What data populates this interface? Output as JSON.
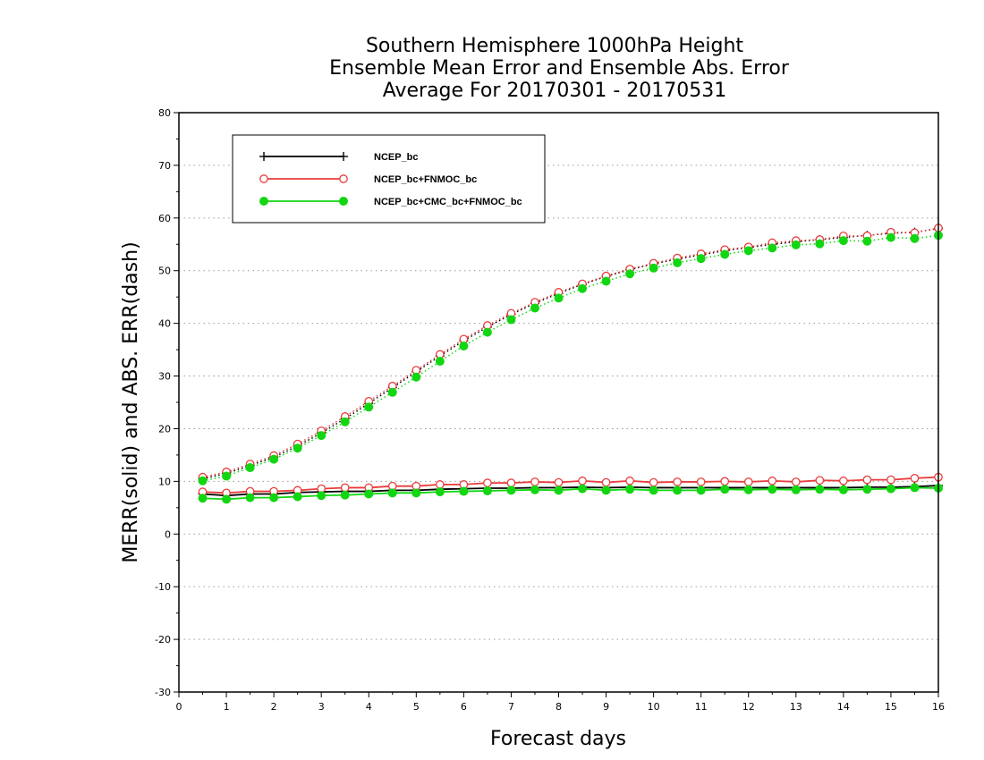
{
  "chart_data": {
    "type": "line",
    "title": [
      "Southern Hemisphere 1000hPa Height",
      "Ensemble Mean Error and Ensemble Abs. Error",
      "Average For 20170301 - 20170531"
    ],
    "xlabel": "Forecast days",
    "ylabel": "MERR(solid) and ABS. ERR(dash)",
    "xlim": [
      0,
      16
    ],
    "ylim": [
      -30,
      80
    ],
    "xticks": [
      "0",
      "1",
      "2",
      "3",
      "4",
      "5",
      "6",
      "7",
      "8",
      "9",
      "10",
      "11",
      "12",
      "13",
      "14",
      "15",
      "16"
    ],
    "yticks": [
      "-30",
      "-20",
      "-10",
      "0",
      "10",
      "20",
      "30",
      "40",
      "50",
      "60",
      "70",
      "80"
    ],
    "grid": "horizontal dotted",
    "legend_position": "top-left",
    "x": [
      0.5,
      1,
      1.5,
      2,
      2.5,
      3,
      3.5,
      4,
      4.5,
      5,
      5.5,
      6,
      6.5,
      7,
      7.5,
      8,
      8.5,
      9,
      9.5,
      10,
      10.5,
      11,
      11.5,
      12,
      12.5,
      13,
      13.5,
      14,
      14.5,
      15,
      15.5,
      16
    ],
    "series": [
      {
        "name": "NCEP_bc",
        "color": "#000000",
        "marker": "plus",
        "merr": [
          7.6,
          7.3,
          7.6,
          7.6,
          7.9,
          8.0,
          8.1,
          8.1,
          8.3,
          8.3,
          8.5,
          8.6,
          8.7,
          8.7,
          8.8,
          8.8,
          8.9,
          8.8,
          8.9,
          8.8,
          8.8,
          8.8,
          8.8,
          8.8,
          8.8,
          8.8,
          8.8,
          8.8,
          8.9,
          8.9,
          9.0,
          9.2
        ],
        "abs_err": [
          10.5,
          11.5,
          13.0,
          14.6,
          16.7,
          19.2,
          21.9,
          24.8,
          27.8,
          30.8,
          33.8,
          36.7,
          39.3,
          41.7,
          43.8,
          45.7,
          47.4,
          48.9,
          50.2,
          51.3,
          52.2,
          53.0,
          53.8,
          54.4,
          55.0,
          55.5,
          55.9,
          56.3,
          56.7,
          57.1,
          57.3,
          58.0
        ]
      },
      {
        "name": "NCEP_bc+FNMOC_bc",
        "color": "#e83c3c",
        "marker": "open-circle",
        "merr": [
          8.0,
          7.8,
          8.1,
          8.1,
          8.3,
          8.6,
          8.8,
          8.8,
          9.1,
          9.1,
          9.4,
          9.4,
          9.7,
          9.7,
          9.9,
          9.8,
          10.1,
          9.8,
          10.1,
          9.8,
          9.9,
          9.9,
          10.0,
          9.9,
          10.1,
          9.9,
          10.2,
          10.1,
          10.3,
          10.3,
          10.6,
          10.8
        ],
        "abs_err": [
          10.8,
          11.8,
          13.3,
          14.9,
          17.1,
          19.6,
          22.3,
          25.2,
          28.1,
          31.1,
          34.1,
          37.0,
          39.6,
          41.9,
          44.0,
          45.9,
          47.5,
          49.0,
          50.3,
          51.4,
          52.4,
          53.2,
          54.0,
          54.5,
          55.3,
          55.7,
          55.9,
          56.6,
          56.6,
          57.3,
          57.2,
          58.1
        ]
      },
      {
        "name": "NCEP_bc+CMC_bc+FNMOC_bc",
        "color": "#12d612",
        "marker": "filled-circle",
        "merr": [
          6.8,
          6.6,
          6.9,
          6.9,
          7.1,
          7.3,
          7.4,
          7.6,
          7.8,
          7.8,
          8.0,
          8.1,
          8.2,
          8.3,
          8.4,
          8.3,
          8.6,
          8.3,
          8.5,
          8.3,
          8.3,
          8.3,
          8.5,
          8.4,
          8.5,
          8.4,
          8.5,
          8.4,
          8.5,
          8.6,
          8.8,
          8.7
        ],
        "abs_err": [
          10.1,
          11.0,
          12.6,
          14.2,
          16.3,
          18.7,
          21.3,
          24.1,
          26.9,
          29.8,
          32.8,
          35.7,
          38.3,
          40.7,
          42.9,
          44.8,
          46.6,
          48.0,
          49.4,
          50.5,
          51.5,
          52.3,
          53.1,
          53.8,
          54.3,
          54.9,
          55.1,
          55.7,
          55.6,
          56.3,
          56.1,
          56.7
        ]
      }
    ]
  }
}
